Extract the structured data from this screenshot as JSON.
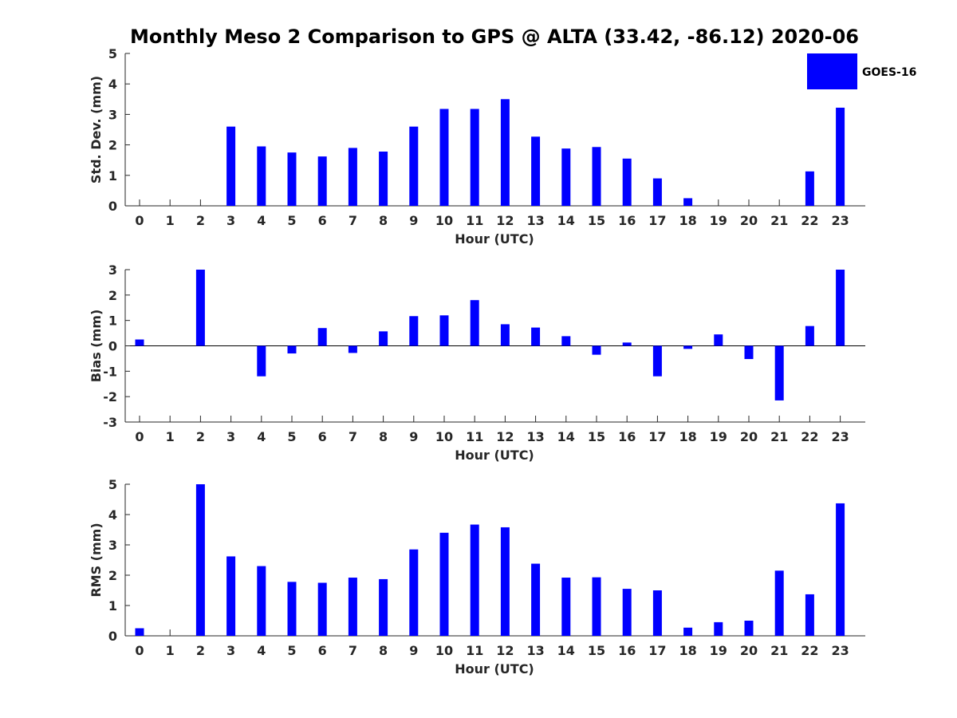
{
  "figure": {
    "title": "Monthly Meso 2 Comparison to GPS @ ALTA (33.42, -86.12) 2020-06",
    "legend_placement": "top-right",
    "colors": {
      "bar": "#0000ff",
      "axis": "#262626",
      "background": "#ffffff"
    }
  },
  "chart_data": [
    {
      "type": "bar",
      "ylabel": "Std. Dev. (mm)",
      "xlabel": "Hour (UTC)",
      "ylim": [
        0,
        5
      ],
      "yticks": [
        0,
        1,
        2,
        3,
        4,
        5
      ],
      "categories": [
        "0",
        "1",
        "2",
        "3",
        "4",
        "5",
        "6",
        "7",
        "8",
        "9",
        "10",
        "11",
        "12",
        "13",
        "14",
        "15",
        "16",
        "17",
        "18",
        "19",
        "20",
        "21",
        "22",
        "23"
      ],
      "series": [
        {
          "name": "GOES-16",
          "color": "#0000ff",
          "values": [
            0,
            0,
            0,
            2.6,
            1.95,
            1.75,
            1.62,
            1.9,
            1.78,
            2.6,
            3.18,
            3.18,
            3.5,
            2.27,
            1.88,
            1.93,
            1.55,
            0.9,
            0.25,
            0,
            0,
            0,
            1.13,
            3.22
          ]
        }
      ],
      "legend": [
        "GOES-16"
      ],
      "grid": false
    },
    {
      "type": "bar",
      "ylabel": "Bias (mm)",
      "xlabel": "Hour (UTC)",
      "ylim": [
        -3,
        3
      ],
      "yticks": [
        -3,
        -2,
        -1,
        0,
        1,
        2,
        3
      ],
      "categories": [
        "0",
        "1",
        "2",
        "3",
        "4",
        "5",
        "6",
        "7",
        "8",
        "9",
        "10",
        "11",
        "12",
        "13",
        "14",
        "15",
        "16",
        "17",
        "18",
        "19",
        "20",
        "21",
        "22",
        "23"
      ],
      "series": [
        {
          "name": "GOES-16",
          "color": "#0000ff",
          "values": [
            0.25,
            0,
            3.0,
            0,
            -1.2,
            -0.3,
            0.7,
            -0.28,
            0.57,
            1.17,
            1.2,
            1.8,
            0.85,
            0.72,
            0.38,
            -0.35,
            0.13,
            -1.2,
            -0.12,
            0.45,
            -0.52,
            -2.15,
            0.78,
            3.0
          ]
        }
      ],
      "grid": false
    },
    {
      "type": "bar",
      "ylabel": "RMS (mm)",
      "xlabel": "Hour (UTC)",
      "ylim": [
        0,
        5
      ],
      "yticks": [
        0,
        1,
        2,
        3,
        4,
        5
      ],
      "categories": [
        "0",
        "1",
        "2",
        "3",
        "4",
        "5",
        "6",
        "7",
        "8",
        "9",
        "10",
        "11",
        "12",
        "13",
        "14",
        "15",
        "16",
        "17",
        "18",
        "19",
        "20",
        "21",
        "22",
        "23"
      ],
      "series": [
        {
          "name": "GOES-16",
          "color": "#0000ff",
          "values": [
            0.25,
            0,
            5.0,
            2.62,
            2.3,
            1.78,
            1.75,
            1.92,
            1.87,
            2.85,
            3.4,
            3.67,
            3.58,
            2.38,
            1.92,
            1.93,
            1.55,
            1.5,
            0.27,
            0.45,
            0.5,
            2.15,
            1.37,
            4.37
          ]
        }
      ],
      "grid": false
    }
  ]
}
